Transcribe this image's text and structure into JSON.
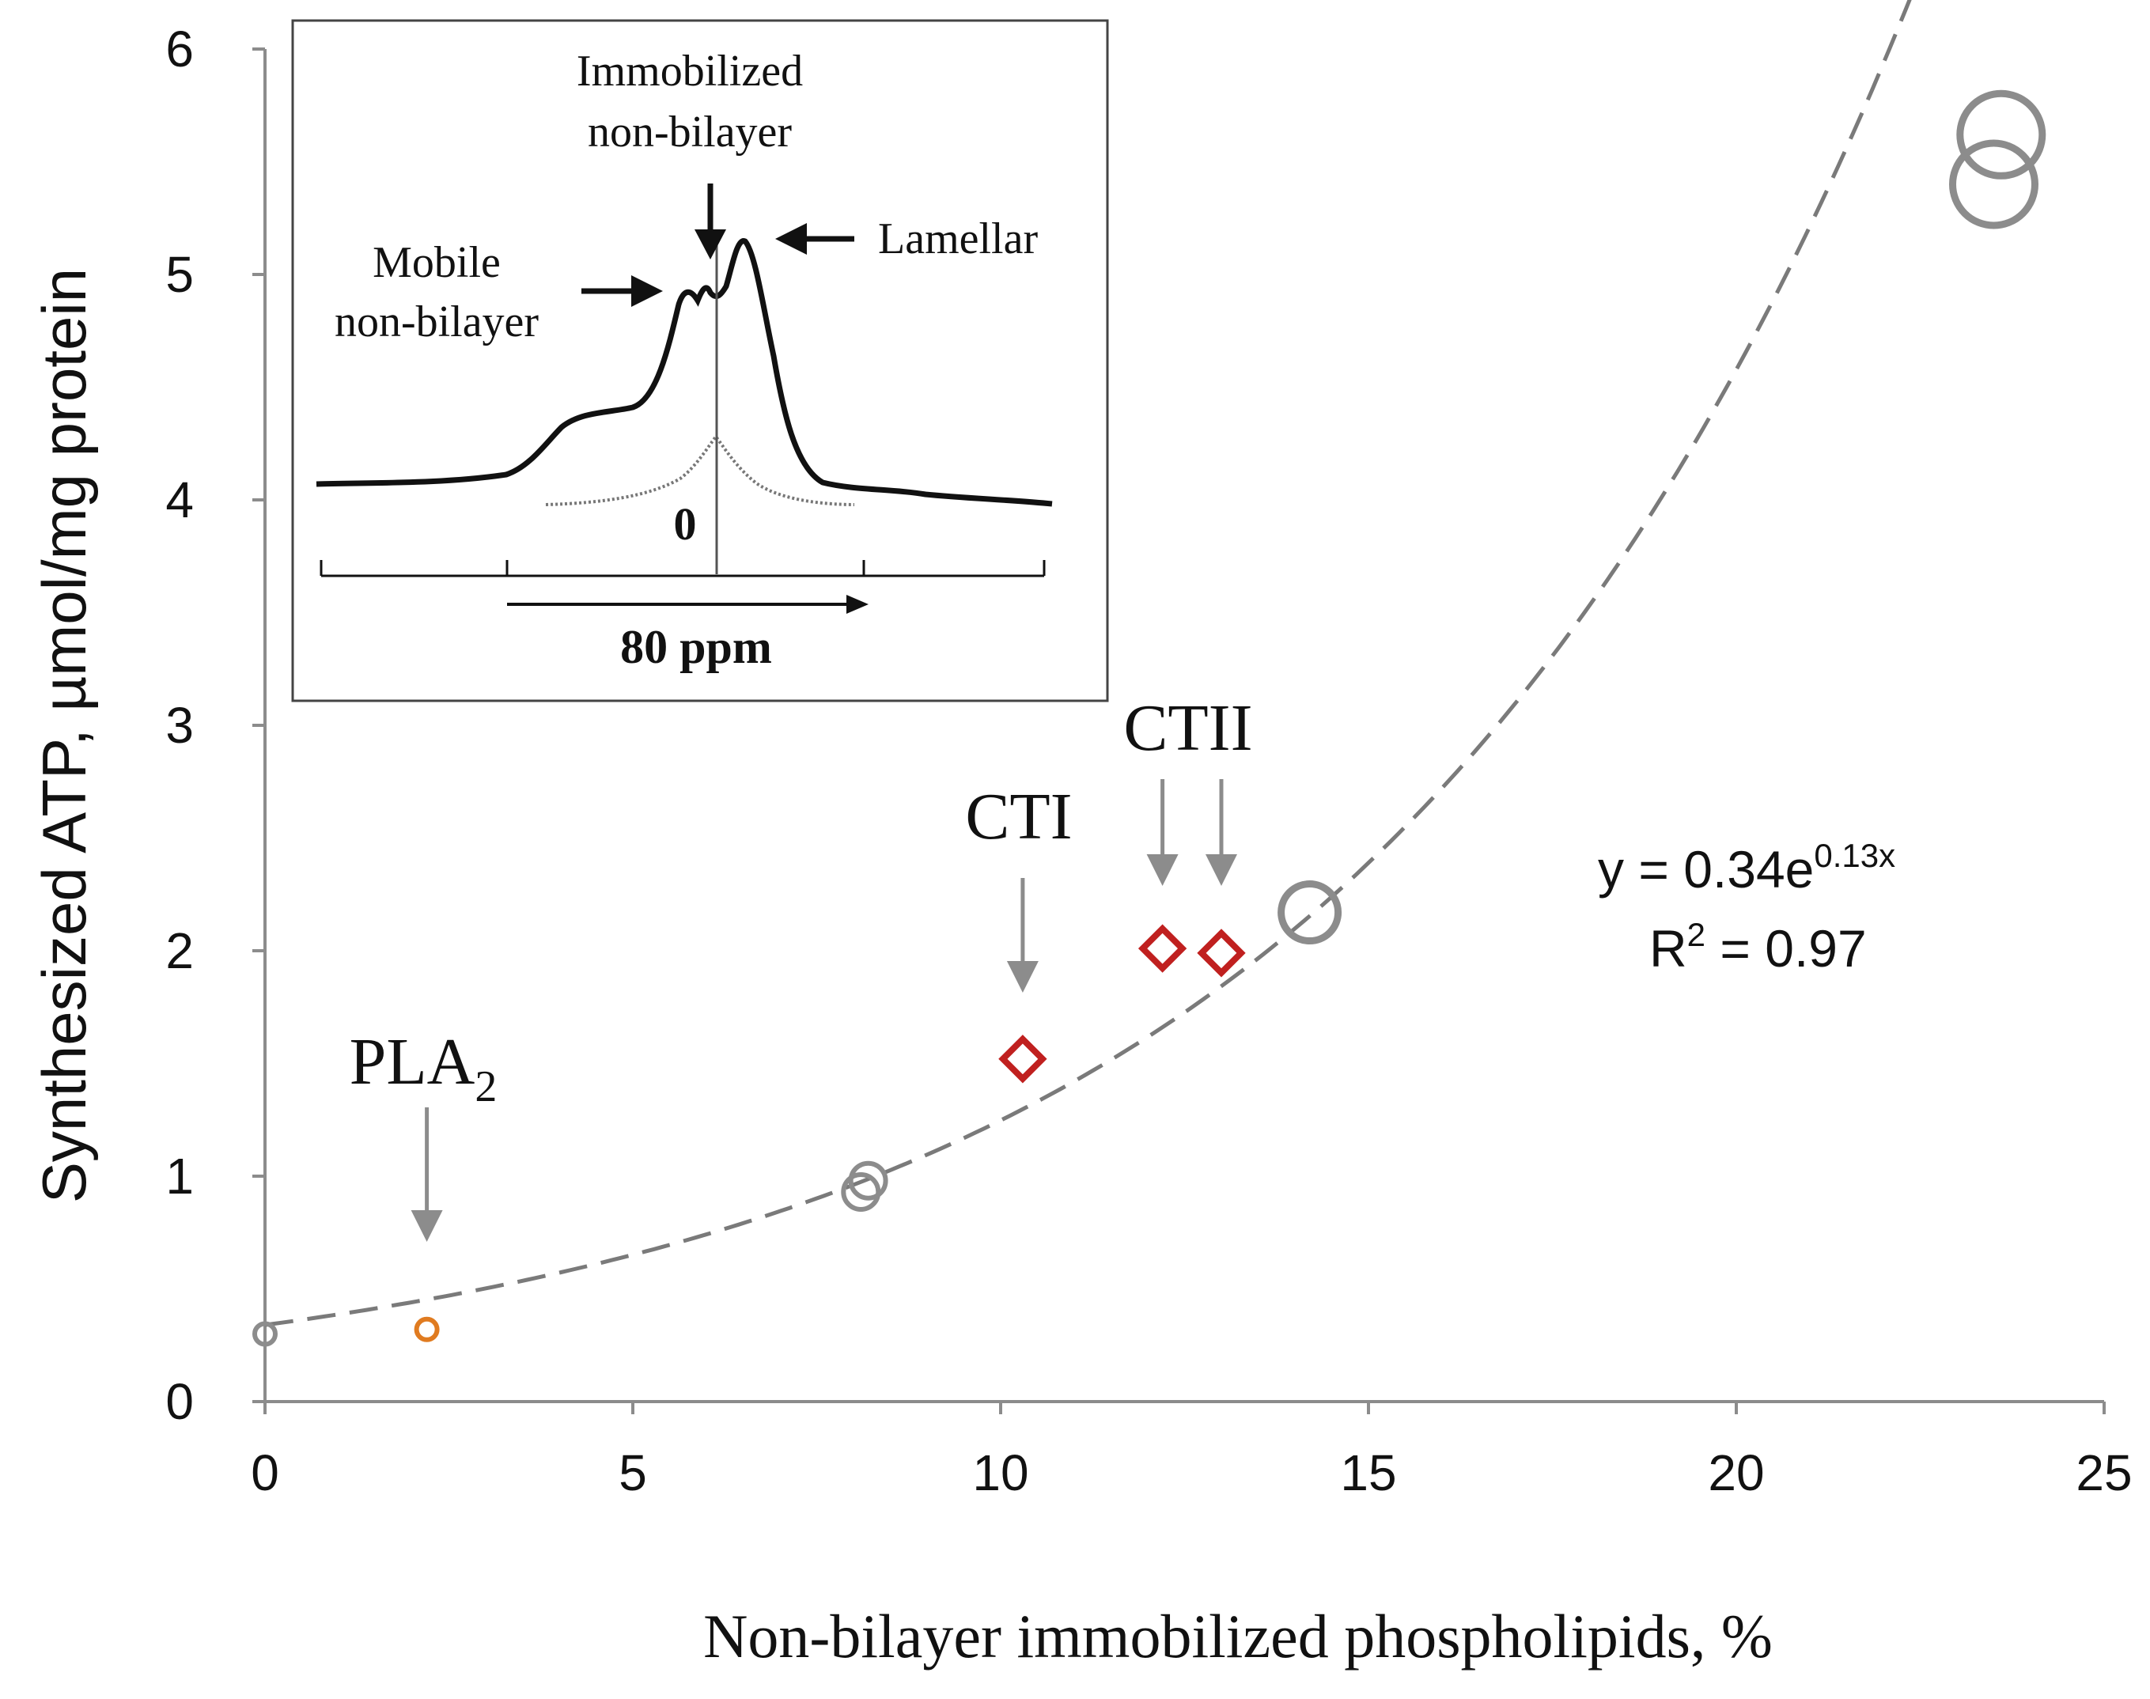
{
  "chart_data": {
    "type": "scatter",
    "xlabel": "Non-bilayer immobilized phospholipids, %",
    "ylabel": "Synthesized ATP, µmol/mg protein",
    "xlim": [
      0,
      25
    ],
    "ylim": [
      0,
      6
    ],
    "x_ticks": [
      0,
      5,
      10,
      15,
      20,
      25
    ],
    "y_ticks": [
      0,
      1,
      2,
      3,
      4,
      5,
      6
    ],
    "grid": false,
    "series": [
      {
        "marker": "circle",
        "color": "#8c8c8c",
        "points": [
          {
            "x": 0,
            "y": 0.3,
            "size": "small"
          },
          {
            "x": 8.1,
            "y": 0.93,
            "size": "medium"
          },
          {
            "x": 8.2,
            "y": 0.98,
            "size": "medium"
          },
          {
            "x": 14.2,
            "y": 2.17,
            "size": "large"
          },
          {
            "x": 23.6,
            "y": 5.62,
            "size": "xlarge"
          },
          {
            "x": 23.5,
            "y": 5.4,
            "size": "xlarge"
          }
        ]
      },
      {
        "marker": "circle",
        "color": "#e07b20",
        "points": [
          {
            "x": 2.2,
            "y": 0.32,
            "size": "small"
          }
        ]
      },
      {
        "marker": "diamond",
        "color": "#c0201f",
        "points": [
          {
            "x": 10.3,
            "y": 1.52
          },
          {
            "x": 12.2,
            "y": 2.01
          },
          {
            "x": 13.0,
            "y": 1.99
          }
        ]
      }
    ],
    "trendline": {
      "type": "exponential",
      "a": 0.34,
      "b": 0.13,
      "x_range": [
        0,
        23
      ],
      "style": "dashed",
      "color": "#7a7a7a"
    },
    "equation": {
      "prefix": "y = 0.34e",
      "exponent": "0.13x"
    },
    "r2": {
      "label": "R",
      "power": "2",
      "rest": " = 0.97"
    },
    "annotations": [
      {
        "text": "PLA",
        "subscript": "2",
        "x": 2.2,
        "y": 0.32
      },
      {
        "text": "CTI",
        "x": 10.3,
        "y": 1.52
      },
      {
        "text": "CTII",
        "x": 12.2,
        "y": 2.01
      },
      {
        "text": "",
        "x": 13.0,
        "y": 1.99
      }
    ],
    "inset": {
      "labels": {
        "immobilized_line1": "Immobilized",
        "immobilized_line2": "non-bilayer",
        "mobile_line1": "Mobile",
        "mobile_line2": "non-bilayer",
        "lamellar": "Lamellar",
        "zero": "0",
        "scale": "80 ppm"
      }
    }
  },
  "colors": {
    "axis": "#8c8c8c",
    "marker_gray": "#8c8c8c",
    "marker_orange": "#e07b20",
    "marker_red": "#c0201f",
    "arrow": "#8c8c8c",
    "text": "#111111"
  }
}
